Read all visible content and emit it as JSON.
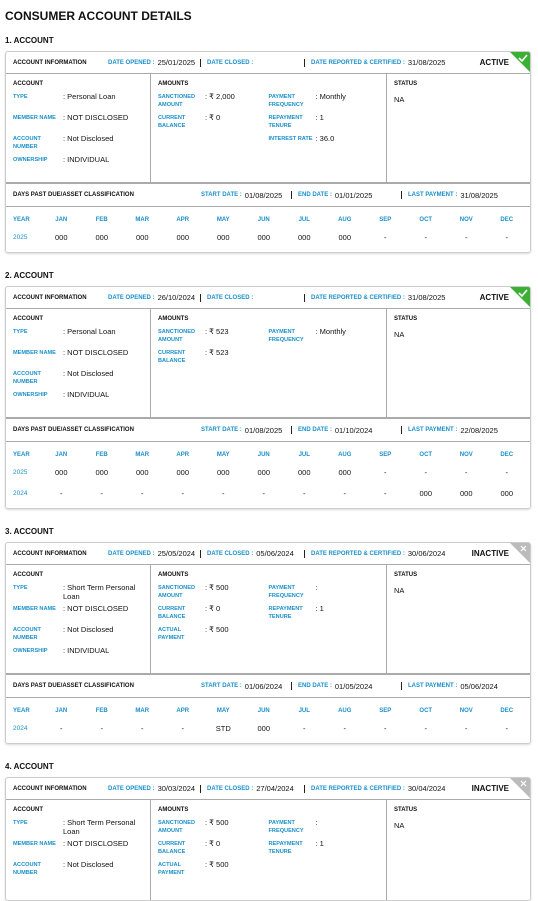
{
  "title": "CONSUMER ACCOUNT DETAILS",
  "accounts": [
    {
      "heading": "1. ACCOUNT",
      "info": {
        "label": "ACCOUNT INFORMATION",
        "date_opened_label": "DATE OPENED :",
        "date_opened": "25/01/2025",
        "date_closed_label": "DATE CLOSED :",
        "date_reported_label": "DATE REPORTED & CERTIFIED :",
        "date_reported": "31/08/2025",
        "status": "ACTIVE"
      },
      "account": {
        "header": "ACCOUNT",
        "fields": [
          {
            "label": "TYPE",
            "value": ": Personal Loan"
          },
          {
            "label": "MEMBER NAME",
            "value": ": NOT DISCLOSED"
          },
          {
            "label": "ACCOUNT NUMBER",
            "value": ": Not Disclosed"
          },
          {
            "label": "OWNERSHIP",
            "value": ": INDIVIDUAL"
          }
        ]
      },
      "amounts": {
        "header": "AMOUNTS",
        "left": [
          {
            "label": "SANCTIONED AMOUNT",
            "value": ": ₹ 2,000"
          },
          {
            "label": "CURRENT BALANCE",
            "value": ": ₹ 0"
          }
        ],
        "right": [
          {
            "label": "PAYMENT FREQUENCY",
            "value": ": Monthly"
          },
          {
            "label": "REPAYMENT TENURE",
            "value": ": 1"
          },
          {
            "label": "INTEREST RATE",
            "value": ": 36.0"
          }
        ]
      },
      "status": {
        "header": "STATUS",
        "value": "NA"
      },
      "dpd": {
        "label": "DAYS PAST DUE/ASSET CLASSIFICATION",
        "start_date_label": "START DATE :",
        "start_date": "01/08/2025",
        "end_date_label": "END DATE :",
        "end_date": "01/01/2025",
        "last_payment_label": "LAST PAYMENT :",
        "last_payment": "31/08/2025",
        "columns": [
          "YEAR",
          "JAN",
          "FEB",
          "MAR",
          "APR",
          "MAY",
          "JUN",
          "JUL",
          "AUG",
          "SEP",
          "OCT",
          "NOV",
          "DEC"
        ],
        "rows": [
          [
            "2025",
            "000",
            "000",
            "000",
            "000",
            "000",
            "000",
            "000",
            "000",
            "-",
            "-",
            "-",
            "-"
          ]
        ]
      }
    },
    {
      "heading": "2. ACCOUNT",
      "info": {
        "label": "ACCOUNT INFORMATION",
        "date_opened_label": "DATE OPENED :",
        "date_opened": "26/10/2024",
        "date_closed_label": "DATE CLOSED :",
        "date_reported_label": "DATE REPORTED & CERTIFIED :",
        "date_reported": "31/08/2025",
        "status": "ACTIVE"
      },
      "account": {
        "header": "ACCOUNT",
        "fields": [
          {
            "label": "TYPE",
            "value": ": Personal Loan"
          },
          {
            "label": "MEMBER NAME",
            "value": ": NOT DISCLOSED"
          },
          {
            "label": "ACCOUNT NUMBER",
            "value": ": Not Disclosed"
          },
          {
            "label": "OWNERSHIP",
            "value": ": INDIVIDUAL"
          }
        ]
      },
      "amounts": {
        "header": "AMOUNTS",
        "left": [
          {
            "label": "SANCTIONED AMOUNT",
            "value": ": ₹ 523"
          },
          {
            "label": "CURRENT BALANCE",
            "value": ": ₹ 523"
          }
        ],
        "right": [
          {
            "label": "PAYMENT FREQUENCY",
            "value": ": Monthly"
          }
        ]
      },
      "status": {
        "header": "STATUS",
        "value": "NA"
      },
      "dpd": {
        "label": "DAYS PAST DUE/ASSET CLASSIFICATION",
        "start_date_label": "START DATE :",
        "start_date": "01/08/2025",
        "end_date_label": "END DATE :",
        "end_date": "01/10/2024",
        "last_payment_label": "LAST PAYMENT :",
        "last_payment": "22/08/2025",
        "columns": [
          "YEAR",
          "JAN",
          "FEB",
          "MAR",
          "APR",
          "MAY",
          "JUN",
          "JUL",
          "AUG",
          "SEP",
          "OCT",
          "NOV",
          "DEC"
        ],
        "rows": [
          [
            "2025",
            "000",
            "000",
            "000",
            "000",
            "000",
            "000",
            "000",
            "000",
            "-",
            "-",
            "-",
            "-"
          ],
          [
            "2024",
            "-",
            "-",
            "-",
            "-",
            "-",
            "-",
            "-",
            "-",
            "-",
            "000",
            "000",
            "000"
          ]
        ]
      }
    },
    {
      "heading": "3. ACCOUNT",
      "info": {
        "label": "ACCOUNT INFORMATION",
        "date_opened_label": "DATE OPENED :",
        "date_opened": "25/05/2024",
        "date_closed_label": "DATE CLOSED :",
        "date_closed": "05/06/2024",
        "date_reported_label": "DATE REPORTED & CERTIFIED :",
        "date_reported": "30/06/2024",
        "status": "INACTIVE"
      },
      "account": {
        "header": "ACCOUNT",
        "fields": [
          {
            "label": "TYPE",
            "value": ": Short Term Personal Loan"
          },
          {
            "label": "MEMBER NAME",
            "value": ": NOT DISCLOSED"
          },
          {
            "label": "ACCOUNT NUMBER",
            "value": ": Not Disclosed"
          },
          {
            "label": "OWNERSHIP",
            "value": ": INDIVIDUAL"
          }
        ]
      },
      "amounts": {
        "header": "AMOUNTS",
        "left": [
          {
            "label": "SANCTIONED AMOUNT",
            "value": ": ₹ 500"
          },
          {
            "label": "CURRENT BALANCE",
            "value": ": ₹ 0"
          },
          {
            "label": "ACTUAL PAYMENT",
            "value": ": ₹ 500"
          }
        ],
        "right": [
          {
            "label": "PAYMENT FREQUENCY",
            "value": ":"
          },
          {
            "label": "REPAYMENT TENURE",
            "value": ": 1"
          }
        ]
      },
      "status": {
        "header": "STATUS",
        "value": "NA"
      },
      "dpd": {
        "label": "DAYS PAST DUE/ASSET CLASSIFICATION",
        "start_date_label": "START DATE :",
        "start_date": "01/06/2024",
        "end_date_label": "END DATE :",
        "end_date": "01/05/2024",
        "last_payment_label": "LAST PAYMENT :",
        "last_payment": "05/06/2024",
        "columns": [
          "YEAR",
          "JAN",
          "FEB",
          "MAR",
          "APR",
          "MAY",
          "JUN",
          "JUL",
          "AUG",
          "SEP",
          "OCT",
          "NOV",
          "DEC"
        ],
        "rows": [
          [
            "2024",
            "-",
            "-",
            "-",
            "-",
            "STD",
            "000",
            "-",
            "-",
            "-",
            "-",
            "-",
            "-"
          ]
        ]
      }
    },
    {
      "heading": "4. ACCOUNT",
      "info": {
        "label": "ACCOUNT INFORMATION",
        "date_opened_label": "DATE OPENED :",
        "date_opened": "30/03/2024",
        "date_closed_label": "DATE CLOSED :",
        "date_closed": "27/04/2024",
        "date_reported_label": "DATE REPORTED & CERTIFIED :",
        "date_reported": "30/04/2024",
        "status": "INACTIVE"
      },
      "account": {
        "header": "ACCOUNT",
        "fields": [
          {
            "label": "TYPE",
            "value": ": Short Term Personal Loan"
          },
          {
            "label": "MEMBER NAME",
            "value": ": NOT DISCLOSED"
          },
          {
            "label": "ACCOUNT NUMBER",
            "value": ": Not Disclosed"
          }
        ]
      },
      "amounts": {
        "header": "AMOUNTS",
        "left": [
          {
            "label": "SANCTIONED AMOUNT",
            "value": ": ₹ 500"
          },
          {
            "label": "CURRENT BALANCE",
            "value": ": ₹ 0"
          },
          {
            "label": "ACTUAL PAYMENT",
            "value": ": ₹ 500"
          }
        ],
        "right": [
          {
            "label": "PAYMENT FREQUENCY",
            "value": ":"
          },
          {
            "label": "REPAYMENT TENURE",
            "value": ": 1"
          }
        ]
      },
      "status": {
        "header": "STATUS",
        "value": "NA"
      }
    }
  ]
}
